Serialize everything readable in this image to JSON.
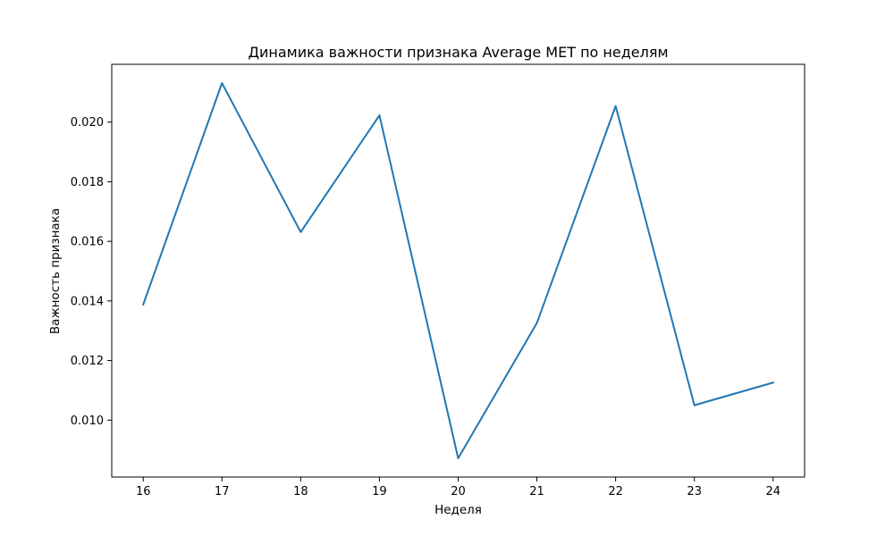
{
  "chart_data": {
    "type": "line",
    "title": "Динамика важности признака Average MET по неделям",
    "xlabel": "Неделя",
    "ylabel": "Важность признака",
    "x": [
      16,
      17,
      18,
      19,
      20,
      21,
      22,
      23,
      24
    ],
    "series": [
      {
        "values": [
          0.01388,
          0.02131,
          0.01631,
          0.02023,
          0.00872,
          0.01326,
          0.02054,
          0.0105,
          0.01126
        ],
        "color": "#1f77b4"
      }
    ],
    "xticks": [
      "16",
      "17",
      "18",
      "19",
      "20",
      "21",
      "22",
      "23",
      "24"
    ],
    "yticks": [
      "0.010",
      "0.012",
      "0.014",
      "0.016",
      "0.018",
      "0.020"
    ],
    "xlim": [
      15.6,
      24.4
    ],
    "ylim": [
      0.00809,
      0.02194
    ],
    "grid": false,
    "legend": "none"
  }
}
